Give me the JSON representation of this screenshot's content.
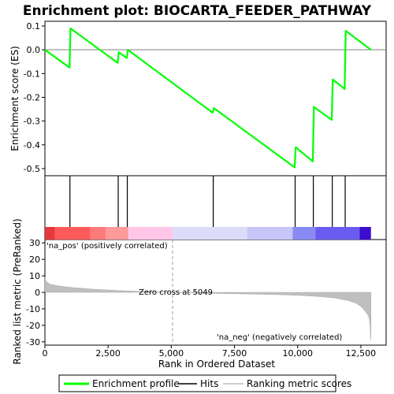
{
  "title": "Enrichment plot: BIOCARTA_FEEDER_PATHWAY",
  "colors": {
    "es_line": "#00ff00",
    "hits": "#000000",
    "ranked": "#bfbfbf",
    "zero_line": "#808080",
    "pos_label": "#cc0000",
    "neg_label": "#0000cc"
  },
  "chart_data": [
    {
      "type": "line",
      "panel": "enrichment",
      "ylabel": "Enrichment score (ES)",
      "xlim": [
        0,
        13500
      ],
      "ylim": [
        -0.53,
        0.12
      ],
      "yticks": [
        0.1,
        0.0,
        -0.1,
        -0.2,
        -0.3,
        -0.4,
        -0.5
      ],
      "ytick_labels": [
        "0.1",
        "0.0",
        "-0.1",
        "-0.2",
        "-0.3",
        "-0.4",
        "-0.5"
      ],
      "series": [
        {
          "name": "Enrichment profile",
          "x": [
            0,
            975,
            1010,
            2880,
            2920,
            3240,
            3280,
            6640,
            6680,
            9880,
            9920,
            10600,
            10640,
            11350,
            11390,
            11860,
            11900,
            12900
          ],
          "y": [
            0.0,
            -0.075,
            0.09,
            -0.055,
            -0.01,
            -0.035,
            0.0,
            -0.265,
            -0.245,
            -0.495,
            -0.41,
            -0.47,
            -0.24,
            -0.295,
            -0.125,
            -0.165,
            0.08,
            0.0
          ]
        }
      ]
    },
    {
      "type": "scatter",
      "panel": "hits",
      "series": [
        {
          "name": "Hits",
          "x": [
            990,
            2900,
            3260,
            6660,
            9900,
            10620,
            11370,
            11880
          ]
        }
      ]
    },
    {
      "type": "area",
      "panel": "ranked_list",
      "xlabel": "Rank in Ordered Dataset",
      "ylabel": "Ranked list metric (PreRanked)",
      "xlim": [
        0,
        13500
      ],
      "ylim": [
        -32,
        32
      ],
      "xticks": [
        0,
        2500,
        5000,
        7500,
        10000,
        12500
      ],
      "xtick_labels": [
        "0",
        "2,500",
        "5,000",
        "7,500",
        "10,000",
        "12,500"
      ],
      "yticks": [
        30,
        20,
        10,
        0,
        -10,
        -20,
        -30
      ],
      "ytick_labels": [
        "30",
        "20",
        "10",
        "0",
        "-10",
        "-20",
        "-30"
      ],
      "series": [
        {
          "name": "Ranking metric scores",
          "x": [
            0,
            50,
            200,
            500,
            1000,
            2000,
            3000,
            4000,
            5049,
            6000,
            7000,
            8000,
            9000,
            10000,
            10500,
            11000,
            11500,
            12000,
            12300,
            12500,
            12650,
            12750,
            12820,
            12860,
            12880,
            12900
          ],
          "y": [
            9,
            6.5,
            5,
            4,
            3,
            1.8,
            1.0,
            0.5,
            0,
            -0.4,
            -0.7,
            -1.0,
            -1.3,
            -1.8,
            -2.2,
            -2.7,
            -3.5,
            -5,
            -6.5,
            -8.5,
            -11,
            -13,
            -15,
            -19,
            -25,
            -29
          ]
        }
      ],
      "annotations": {
        "zero_cross": "Zero cross at 5049",
        "zero_cross_x": 5049,
        "pos_label": "'na_pos' (positively correlated)",
        "neg_label": "'na_neg' (negatively correlated)"
      }
    }
  ],
  "color_bar": {
    "segments": [
      {
        "x0": 0,
        "x1": 400,
        "color": "#e8383c"
      },
      {
        "x0": 400,
        "x1": 1800,
        "color": "#ff5a5a"
      },
      {
        "x0": 1800,
        "x1": 2400,
        "color": "#ff7b7b"
      },
      {
        "x0": 2400,
        "x1": 3300,
        "color": "#ff9a9a"
      },
      {
        "x0": 3300,
        "x1": 5049,
        "color": "#ffc6e8"
      },
      {
        "x0": 5049,
        "x1": 8000,
        "color": "#dcdcf8"
      },
      {
        "x0": 8000,
        "x1": 9800,
        "color": "#c6c6f8"
      },
      {
        "x0": 9800,
        "x1": 10700,
        "color": "#8a8af5"
      },
      {
        "x0": 10700,
        "x1": 12450,
        "color": "#6a5cf0"
      },
      {
        "x0": 12450,
        "x1": 12900,
        "color": "#3c0ccf"
      }
    ]
  },
  "legend": {
    "items": [
      {
        "label": "Enrichment profile",
        "color": "#00ff00"
      },
      {
        "label": "Hits",
        "color": "#000000"
      },
      {
        "label": "Ranking metric scores",
        "color": "#bfbfbf"
      }
    ]
  }
}
